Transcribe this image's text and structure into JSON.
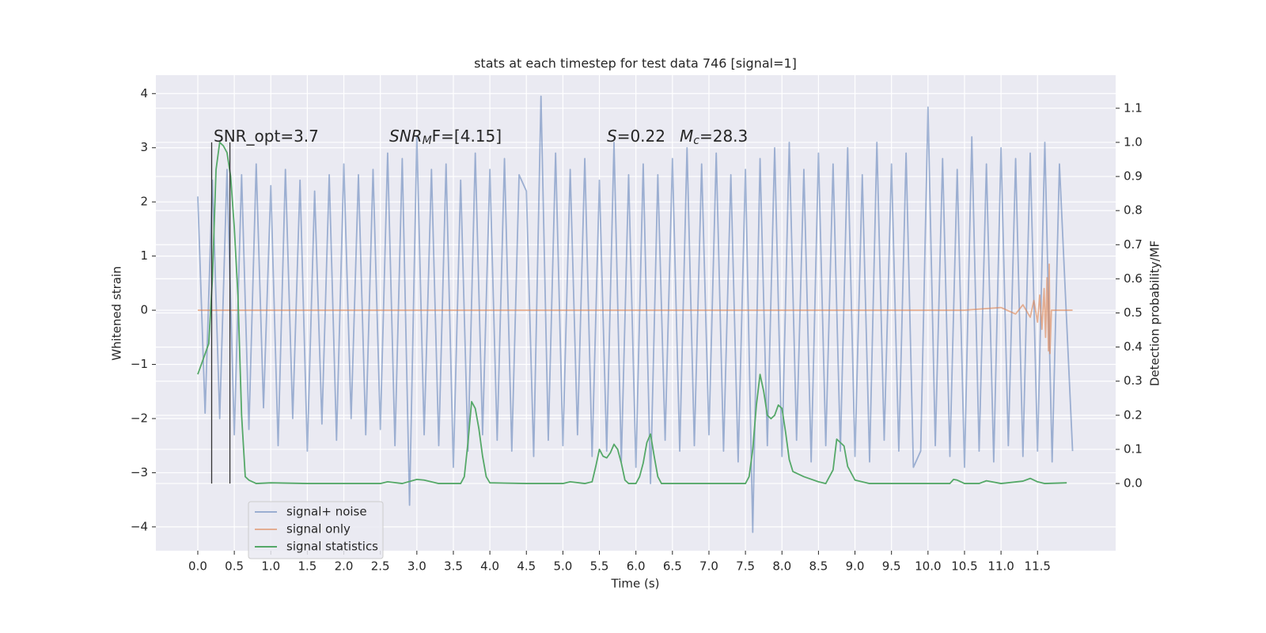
{
  "chart_data": {
    "type": "line",
    "title": "stats at each timestep for test data 746 [signal=1]",
    "xlabel": "Time (s)",
    "ylabel": "Whitened strain",
    "y2label": "Detection probability/MF",
    "grid": true,
    "legend": "lower left",
    "xlim": [
      -0.574,
      12.57
    ],
    "ylim": [
      -4.44,
      4.34
    ],
    "y2lim": [
      -0.197,
      1.197
    ],
    "xticks": [
      {
        "value": 0,
        "label": "0.0"
      },
      0.5,
      {
        "value": 1,
        "label": "1.0"
      },
      1.5,
      {
        "value": 2,
        "label": "2.0"
      },
      2.5,
      {
        "value": 3,
        "label": "3.0"
      },
      3.5,
      {
        "value": 4,
        "label": "4.0"
      },
      4.5,
      {
        "value": 5,
        "label": "5.0"
      },
      5.5,
      {
        "value": 6,
        "label": "6.0"
      },
      6.5,
      {
        "value": 7,
        "label": "7.0"
      },
      7.5,
      {
        "value": 8,
        "label": "8.0"
      },
      8.5,
      {
        "value": 9,
        "label": "9.0"
      },
      9.5,
      {
        "value": 10,
        "label": "10.0"
      },
      10.5,
      {
        "value": 11,
        "label": "11.0"
      },
      11.5
    ],
    "yticks": [
      {
        "value": -4,
        "label": "−4"
      },
      {
        "value": -3,
        "label": "−3"
      },
      {
        "value": -2,
        "label": "−2"
      },
      {
        "value": -1,
        "label": "−1"
      },
      0,
      1,
      2,
      3,
      4
    ],
    "y2ticks": [
      {
        "value": 0,
        "label": "0.0"
      },
      0.1,
      0.2,
      0.3,
      0.4,
      0.5,
      0.6,
      0.7,
      0.8,
      0.9,
      {
        "value": 1,
        "label": "1.0"
      },
      1.1
    ],
    "annotations": [
      {
        "segments": [
          {
            "text": "SNR_opt=3.7"
          }
        ]
      },
      {
        "segments": [
          {
            "text": "SNR",
            "italic": true
          },
          {
            "text": "M",
            "italic": true,
            "sub": true
          },
          {
            "text": "F=[4.15]"
          }
        ]
      },
      {
        "segments": [
          {
            "text": "S",
            "italic": true
          },
          {
            "text": "=0.22"
          }
        ]
      },
      {
        "segments": [
          {
            "text": "M",
            "italic": true
          },
          {
            "text": "c",
            "italic": true,
            "sub": true
          },
          {
            "text": "=28.3"
          }
        ]
      }
    ],
    "vlines": [
      {
        "x": 0.19,
        "y": [
          -3.2,
          3.1
        ]
      },
      {
        "x": 0.44,
        "y": [
          -3.2,
          3.1
        ]
      }
    ],
    "vline_color": "#333333",
    "series": [
      {
        "name": "signal+ noise",
        "color": "#4c72b0",
        "opacity": 0.5,
        "x": [
          0,
          0.1,
          0.2,
          0.3,
          0.4,
          0.5,
          0.6,
          0.7,
          0.8,
          0.9,
          1,
          1.1,
          1.2,
          1.3,
          1.4,
          1.5,
          1.6,
          1.7,
          1.8,
          1.9,
          2,
          2.1,
          2.2,
          2.3,
          2.4,
          2.5,
          2.6,
          2.7,
          2.8,
          2.9,
          3,
          3.1,
          3.2,
          3.3,
          3.4,
          3.5,
          3.6,
          3.7,
          3.8,
          3.9,
          4,
          4.1,
          4.2,
          4.3,
          4.4,
          4.5,
          4.6,
          4.7,
          4.8,
          4.9,
          5,
          5.1,
          5.2,
          5.3,
          5.4,
          5.5,
          5.6,
          5.7,
          5.8,
          5.9,
          6,
          6.1,
          6.2,
          6.3,
          6.4,
          6.5,
          6.6,
          6.7,
          6.8,
          6.9,
          7,
          7.1,
          7.2,
          7.3,
          7.4,
          7.5,
          7.6,
          7.7,
          7.8,
          7.9,
          8,
          8.1,
          8.2,
          8.3,
          8.4,
          8.5,
          8.6,
          8.7,
          8.8,
          8.9,
          9,
          9.1,
          9.2,
          9.3,
          9.4,
          9.5,
          9.6,
          9.7,
          9.8,
          9.9,
          10,
          10.1,
          10.2,
          10.3,
          10.4,
          10.5,
          10.6,
          10.7,
          10.8,
          10.9,
          11,
          11.1,
          11.2,
          11.3,
          11.4,
          11.5,
          11.6,
          11.7,
          11.8,
          11.98
        ],
        "values": [
          2.1,
          -1.9,
          2.4,
          -2.0,
          2.6,
          -2.3,
          2.5,
          -2.2,
          2.7,
          -1.8,
          2.3,
          -2.5,
          2.6,
          -2.0,
          2.4,
          -2.6,
          2.2,
          -2.1,
          2.5,
          -2.4,
          2.7,
          -2.0,
          2.5,
          -2.3,
          2.6,
          -2.2,
          2.9,
          -2.5,
          2.8,
          -3.6,
          3.2,
          -2.3,
          2.6,
          -2.5,
          2.7,
          -2.9,
          2.4,
          -2.6,
          2.9,
          -2.3,
          2.6,
          -2.4,
          2.8,
          -2.6,
          2.5,
          2.2,
          -2.7,
          3.95,
          -2.4,
          2.9,
          -2.5,
          2.6,
          -2.3,
          2.8,
          -2.7,
          2.4,
          -2.6,
          3.1,
          -2.8,
          2.5,
          -2.9,
          2.7,
          -3.2,
          2.5,
          -2.4,
          2.8,
          -2.6,
          3.0,
          -2.5,
          2.7,
          -2.3,
          2.9,
          -2.6,
          2.5,
          -2.8,
          2.6,
          -4.1,
          2.8,
          -2.5,
          3.0,
          -2.7,
          3.1,
          -2.4,
          2.6,
          -2.8,
          2.9,
          -2.5,
          2.7,
          -2.6,
          3.0,
          -2.7,
          2.5,
          -2.8,
          3.1,
          -2.4,
          2.7,
          -2.6,
          2.9,
          -2.9,
          -2.6,
          3.75,
          -2.5,
          2.8,
          -2.7,
          2.6,
          -2.9,
          3.2,
          -2.6,
          2.7,
          -2.8,
          3.0,
          -2.5,
          2.8,
          -2.7,
          2.9,
          -2.6,
          3.1,
          -2.8,
          2.7,
          -2.6
        ]
      },
      {
        "name": "signal only",
        "color": "#dd8452",
        "opacity": 0.6,
        "x": [
          0,
          10.5,
          11.0,
          11.2,
          11.3,
          11.4,
          11.45,
          11.5,
          11.53,
          11.56,
          11.59,
          11.61,
          11.63,
          11.65,
          11.66,
          11.67,
          11.69,
          11.98
        ],
        "values": [
          0,
          0,
          0.05,
          -0.07,
          0.1,
          -0.13,
          0.18,
          -0.22,
          0.28,
          -0.35,
          0.4,
          -0.5,
          0.6,
          -0.75,
          0.85,
          -0.8,
          0,
          0
        ]
      },
      {
        "name": "signal statistics",
        "color": "#55a868",
        "opacity": 1,
        "axis": "y2",
        "x": [
          0,
          0.15,
          0.2,
          0.25,
          0.3,
          0.35,
          0.4,
          0.45,
          0.5,
          0.55,
          0.6,
          0.65,
          0.7,
          0.8,
          1,
          1.5,
          2,
          2.5,
          2.6,
          2.8,
          3,
          3.1,
          3.3,
          3.6,
          3.65,
          3.7,
          3.75,
          3.8,
          3.85,
          3.9,
          3.95,
          4,
          4.5,
          5,
          5.1,
          5.3,
          5.4,
          5.45,
          5.5,
          5.55,
          5.6,
          5.65,
          5.7,
          5.75,
          5.8,
          5.85,
          5.9,
          6,
          6.05,
          6.1,
          6.15,
          6.2,
          6.25,
          6.3,
          6.35,
          6.5,
          7,
          7.5,
          7.55,
          7.6,
          7.65,
          7.7,
          7.75,
          7.8,
          7.85,
          7.9,
          7.95,
          8,
          8.05,
          8.1,
          8.15,
          8.3,
          8.5,
          8.6,
          8.7,
          8.75,
          8.85,
          8.9,
          9,
          9.2,
          10,
          10.3,
          10.35,
          10.4,
          10.5,
          10.7,
          10.8,
          11,
          11.3,
          11.4,
          11.5,
          11.6,
          11.9
        ],
        "values": [
          0.32,
          0.41,
          0.6,
          0.92,
          1.0,
          0.99,
          0.97,
          0.9,
          0.75,
          0.55,
          0.2,
          0.02,
          0.01,
          0.0,
          0.002,
          0.0,
          0.0,
          0.0,
          0.005,
          0.0,
          0.012,
          0.01,
          0.0,
          0.0,
          0.02,
          0.12,
          0.24,
          0.22,
          0.16,
          0.08,
          0.02,
          0.002,
          0.0,
          0.0,
          0.005,
          0.0,
          0.005,
          0.05,
          0.1,
          0.08,
          0.075,
          0.09,
          0.115,
          0.1,
          0.06,
          0.01,
          0.0,
          0.0,
          0.02,
          0.06,
          0.12,
          0.145,
          0.08,
          0.02,
          0.0,
          0.0,
          0.0,
          0.0,
          0.02,
          0.1,
          0.23,
          0.32,
          0.27,
          0.2,
          0.19,
          0.2,
          0.23,
          0.22,
          0.15,
          0.07,
          0.035,
          0.02,
          0.005,
          0.0,
          0.04,
          0.13,
          0.11,
          0.05,
          0.01,
          0.0,
          0.0,
          0.0,
          0.012,
          0.01,
          0.0,
          0.0,
          0.008,
          0.0,
          0.007,
          0.015,
          0.005,
          0.0,
          0.002
        ]
      }
    ]
  }
}
